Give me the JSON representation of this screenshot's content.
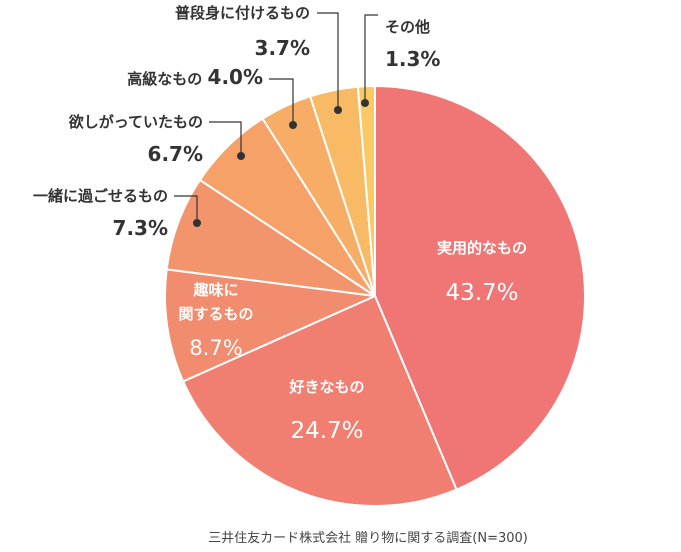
{
  "chart_data": {
    "type": "pie",
    "title": "",
    "source": "三井住友カード株式会社 贈り物に関する調査(N=300)",
    "start": "12 o'clock, clockwise",
    "slices": [
      {
        "label": "実用的なもの",
        "value": 43.7,
        "value_text": "43.7%",
        "color": "#ef7674",
        "label_lines": [
          "実用的なもの"
        ],
        "placement": "inside"
      },
      {
        "label": "好きなもの",
        "value": 24.7,
        "value_text": "24.7%",
        "color": "#f07f72",
        "label_lines": [
          "好きなもの"
        ],
        "placement": "inside"
      },
      {
        "label": "趣味に関するもの",
        "value": 8.7,
        "value_text": "8.7%",
        "color": "#f18c6f",
        "label_lines": [
          "趣味に",
          "関するもの"
        ],
        "placement": "inside"
      },
      {
        "label": "一緒に過ごせるもの",
        "value": 7.3,
        "value_text": "7.3%",
        "color": "#f3956c",
        "label_lines": [
          "一緒に過ごせるもの"
        ],
        "placement": "callout"
      },
      {
        "label": "欲しがっていたもの",
        "value": 6.7,
        "value_text": "6.7%",
        "color": "#f5a168",
        "label_lines": [
          "欲しがっていたもの"
        ],
        "placement": "callout"
      },
      {
        "label": "高級なもの",
        "value": 4.0,
        "value_text": "4.0%",
        "color": "#f7ad66",
        "label_lines": [
          "高級なもの"
        ],
        "placement": "callout"
      },
      {
        "label": "普段身に付けるもの",
        "value": 3.7,
        "value_text": "3.7%",
        "color": "#f9ba65",
        "label_lines": [
          "普段身に付けるもの"
        ],
        "placement": "callout"
      },
      {
        "label": "その他",
        "value": 1.3,
        "value_text": "1.3%",
        "color": "#fbc964",
        "label_lines": [
          "その他"
        ],
        "placement": "callout"
      }
    ]
  }
}
